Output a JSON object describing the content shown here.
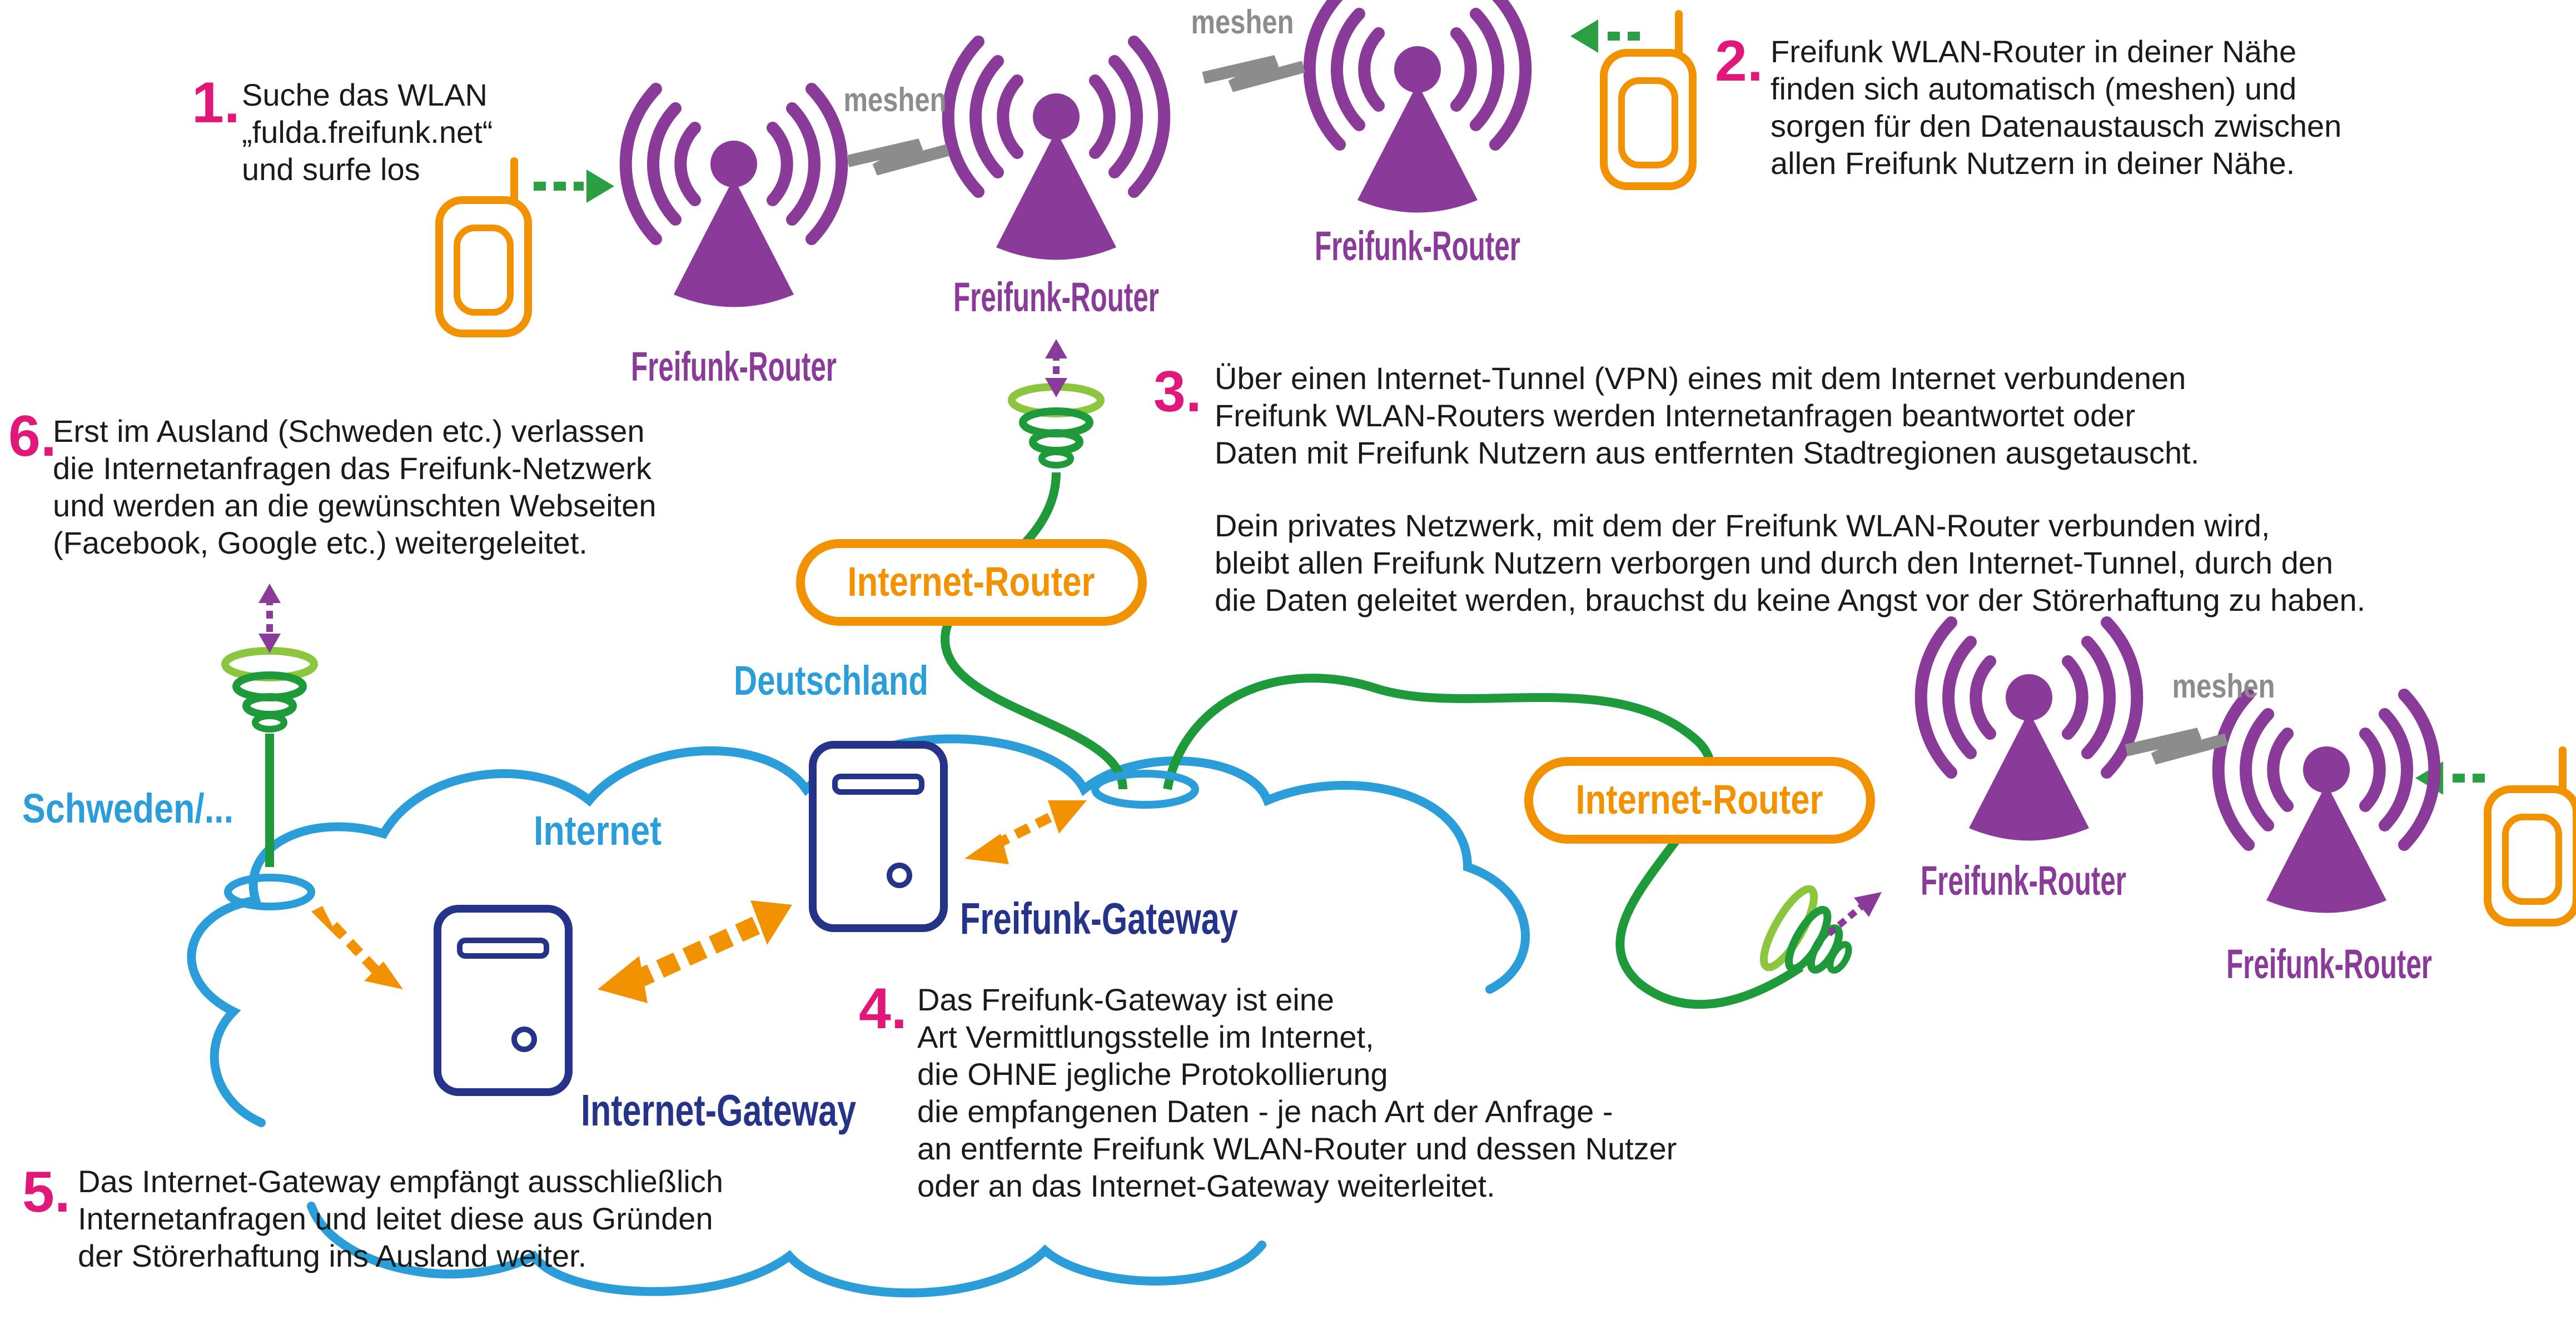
{
  "steps": {
    "s1": {
      "num": "1.",
      "lines": [
        "Suche das WLAN",
        "„fulda.freifunk.net“",
        "und surfe los"
      ]
    },
    "s2": {
      "num": "2.",
      "lines": [
        "Freifunk WLAN-Router in deiner Nähe",
        "finden sich automatisch (meshen) und",
        "sorgen für den Datenaustausch zwischen",
        "allen Freifunk Nutzern in deiner Nähe."
      ]
    },
    "s3": {
      "num": "3.",
      "lines": [
        "Über einen Internet-Tunnel (VPN) eines mit dem Internet verbundenen",
        "Freifunk WLAN-Routers werden Internetanfragen beantwortet oder",
        "Daten mit Freifunk Nutzern aus entfernten Stadtregionen ausgetauscht."
      ],
      "lines_b": [
        "Dein privates Netzwerk, mit dem der Freifunk WLAN-Router verbunden wird,",
        "bleibt allen Freifunk Nutzern verborgen und durch den Internet-Tunnel, durch den",
        "die Daten geleitet werden, brauchst du keine Angst vor der Störerhaftung zu haben."
      ]
    },
    "s4": {
      "num": "4.",
      "lines": [
        "Das Freifunk-Gateway ist eine",
        "Art Vermittlungsstelle im Internet,",
        "die OHNE jegliche Protokollierung",
        "die empfangenen Daten - je nach Art der Anfrage -",
        "an entfernte Freifunk WLAN-Router und dessen Nutzer",
        "oder an das Internet-Gateway weiterleitet."
      ]
    },
    "s5": {
      "num": "5.",
      "lines": [
        "Das Internet-Gateway empfängt ausschließlich",
        "Internetanfragen und leitet diese aus Gründen",
        "der Störerhaftung ins Ausland weiter."
      ]
    },
    "s6": {
      "num": "6.",
      "lines": [
        "Erst im Ausland (Schweden etc.) verlassen",
        "die Internetanfragen das Freifunk-Netzwerk",
        "und werden an die gewünschten Webseiten",
        "(Facebook, Google etc.) weitergeleitet."
      ]
    }
  },
  "labels": {
    "freifunk_router": "Freifunk-Router",
    "internet_router": "Internet-Router",
    "freifunk_gateway": "Freifunk-Gateway",
    "internet_gateway": "Internet-Gateway",
    "meshen": "meshen",
    "deutschland": "Deutschland",
    "internet": "Internet",
    "schweden": "Schweden/..."
  },
  "colors": {
    "router_purple": "#8a3a98",
    "cloud_blue": "#2b9ed9",
    "gateway_navy": "#253488",
    "internet_router_orange": "#f39200",
    "cable_green": "#1e9a3a",
    "wifi_arrow_green": "#2aa043",
    "step_number_pink": "#e2177a",
    "mesh_grey": "#8c8c8c"
  },
  "icons": [
    "smartphone-icon",
    "wifi-router-icon",
    "server-tower-icon",
    "antenna-coil-icon",
    "mesh-zigzag-icon",
    "dashed-arrow-icon"
  ]
}
